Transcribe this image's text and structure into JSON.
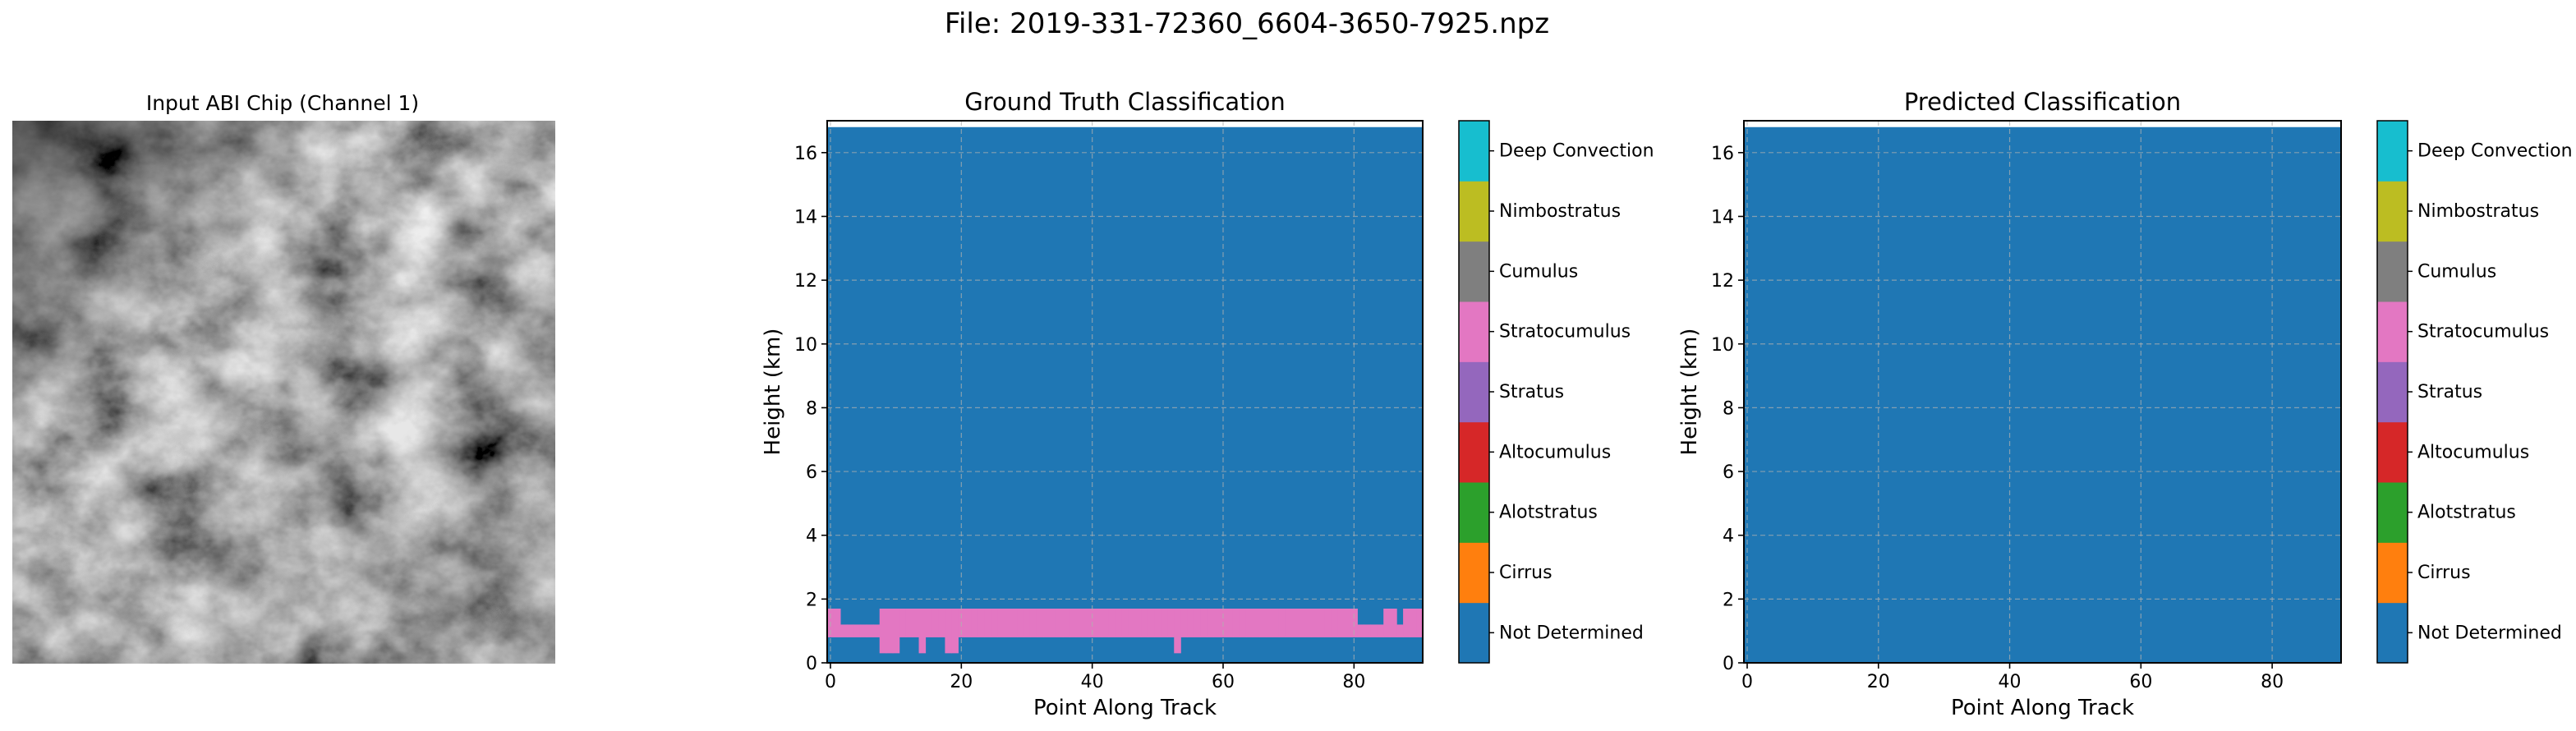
{
  "suptitle": "File: 2019-331-72360_6604-3650-7925.npz",
  "panels": {
    "input": {
      "title": "Input ABI Chip (Channel 1)"
    }
  },
  "colors": {
    "class_colors": [
      "#1f77b4",
      "#ff7f0e",
      "#2ca02c",
      "#d62728",
      "#9467bd",
      "#8c564b",
      "#e377c2",
      "#7f7f7f",
      "#bcbd22",
      "#17becf"
    ],
    "grid": "#b0b0b0"
  },
  "chart_data": [
    {
      "type": "heatmap",
      "title": "Ground Truth Classification",
      "xlabel": "Point Along Track",
      "ylabel": "Height (km)",
      "xlim": [
        -0.5,
        90.5
      ],
      "ylim": [
        0,
        17
      ],
      "data_top": 16.8,
      "x_ticks": [
        0,
        20,
        40,
        60,
        80
      ],
      "y_ticks": [
        0,
        2,
        4,
        6,
        8,
        10,
        12,
        14,
        16
      ],
      "grid": true,
      "background_class": "Not Determined",
      "colorbar": [
        "Not Determined",
        "Cirrus",
        "Alotstratus",
        "Altocumulus",
        "Stratus",
        "Stratocumulus",
        "Cumulus",
        "Nimbostratus",
        "Deep Convection"
      ],
      "class_color_index": [
        0,
        1,
        2,
        3,
        4,
        6,
        7,
        8,
        9
      ],
      "stratocumulus_layer": {
        "class": "Stratocumulus",
        "x_from": 0,
        "x_to": 90,
        "bottom_km": [
          0.8,
          0.8,
          0.8,
          0.8,
          0.8,
          0.8,
          0.8,
          0.8,
          0.3,
          0.3,
          0.3,
          0.8,
          0.8,
          0.8,
          0.3,
          0.8,
          0.8,
          0.8,
          0.3,
          0.3,
          0.8,
          0.8,
          0.8,
          0.8,
          0.8,
          0.8,
          0.8,
          0.8,
          0.8,
          0.8,
          0.8,
          0.8,
          0.8,
          0.8,
          0.8,
          0.8,
          0.8,
          0.8,
          0.8,
          0.8,
          0.8,
          0.8,
          0.8,
          0.8,
          0.8,
          0.8,
          0.8,
          0.8,
          0.8,
          0.8,
          0.8,
          0.8,
          0.8,
          0.3,
          0.8,
          0.8,
          0.8,
          0.8,
          0.8,
          0.8,
          0.8,
          0.8,
          0.8,
          0.8,
          0.8,
          0.8,
          0.8,
          0.8,
          0.8,
          0.8,
          0.8,
          0.8,
          0.8,
          0.8,
          0.8,
          0.8,
          0.8,
          0.8,
          0.8,
          0.8,
          0.8,
          0.8,
          0.8,
          0.8,
          0.8,
          0.8,
          0.8,
          0.8,
          0.8,
          0.8,
          0.8
        ],
        "top_km": [
          1.7,
          1.7,
          1.2,
          1.2,
          1.2,
          1.2,
          1.2,
          1.2,
          1.7,
          1.7,
          1.7,
          1.7,
          1.7,
          1.7,
          1.7,
          1.7,
          1.7,
          1.7,
          1.7,
          1.7,
          1.7,
          1.7,
          1.7,
          1.7,
          1.7,
          1.7,
          1.7,
          1.7,
          1.7,
          1.7,
          1.7,
          1.7,
          1.7,
          1.7,
          1.7,
          1.7,
          1.7,
          1.7,
          1.7,
          1.7,
          1.7,
          1.7,
          1.7,
          1.7,
          1.7,
          1.7,
          1.7,
          1.7,
          1.7,
          1.7,
          1.7,
          1.7,
          1.7,
          1.7,
          1.7,
          1.7,
          1.7,
          1.7,
          1.7,
          1.7,
          1.7,
          1.7,
          1.7,
          1.7,
          1.7,
          1.7,
          1.7,
          1.7,
          1.7,
          1.7,
          1.7,
          1.7,
          1.7,
          1.7,
          1.7,
          1.7,
          1.7,
          1.7,
          1.7,
          1.7,
          1.7,
          1.2,
          1.2,
          1.2,
          1.2,
          1.7,
          1.7,
          1.2,
          1.7,
          1.7,
          1.7
        ]
      }
    },
    {
      "type": "heatmap",
      "title": "Predicted Classification",
      "xlabel": "Point Along Track",
      "ylabel": "Height (km)",
      "xlim": [
        -0.5,
        90.5
      ],
      "ylim": [
        0,
        17
      ],
      "data_top": 16.8,
      "x_ticks": [
        0,
        20,
        40,
        60,
        80
      ],
      "y_ticks": [
        0,
        2,
        4,
        6,
        8,
        10,
        12,
        14,
        16
      ],
      "grid": true,
      "background_class": "Not Determined",
      "colorbar": [
        "Not Determined",
        "Cirrus",
        "Alotstratus",
        "Altocumulus",
        "Stratus",
        "Stratocumulus",
        "Cumulus",
        "Nimbostratus",
        "Deep Convection"
      ],
      "class_color_index": [
        0,
        1,
        2,
        3,
        4,
        6,
        7,
        8,
        9
      ]
    }
  ]
}
